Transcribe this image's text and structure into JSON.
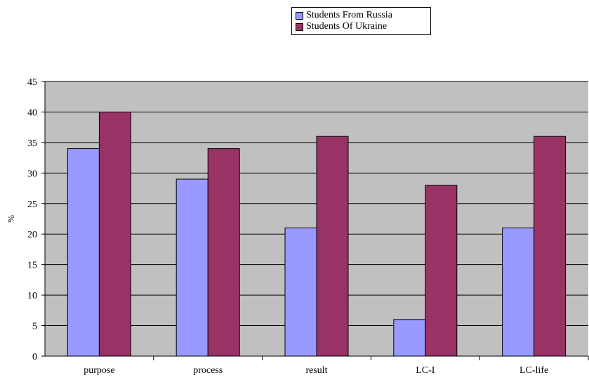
{
  "chart_data": {
    "type": "bar",
    "title": "",
    "xlabel": "",
    "ylabel": "%",
    "ylim": [
      0,
      45
    ],
    "yticks": [
      0,
      5,
      10,
      15,
      20,
      25,
      30,
      35,
      40,
      45
    ],
    "categories": [
      "purpose",
      "process",
      "result",
      "LC-I",
      "LC-life"
    ],
    "series": [
      {
        "name": "Students From Russia",
        "color": "#9999ff",
        "values": [
          34,
          29,
          21,
          6,
          21
        ]
      },
      {
        "name": "Students Of Ukraine",
        "color": "#993366",
        "values": [
          40,
          34,
          36,
          28,
          36
        ]
      }
    ],
    "grid": true,
    "plot_background": "#c0c0c0",
    "legend_position": "top-right"
  }
}
